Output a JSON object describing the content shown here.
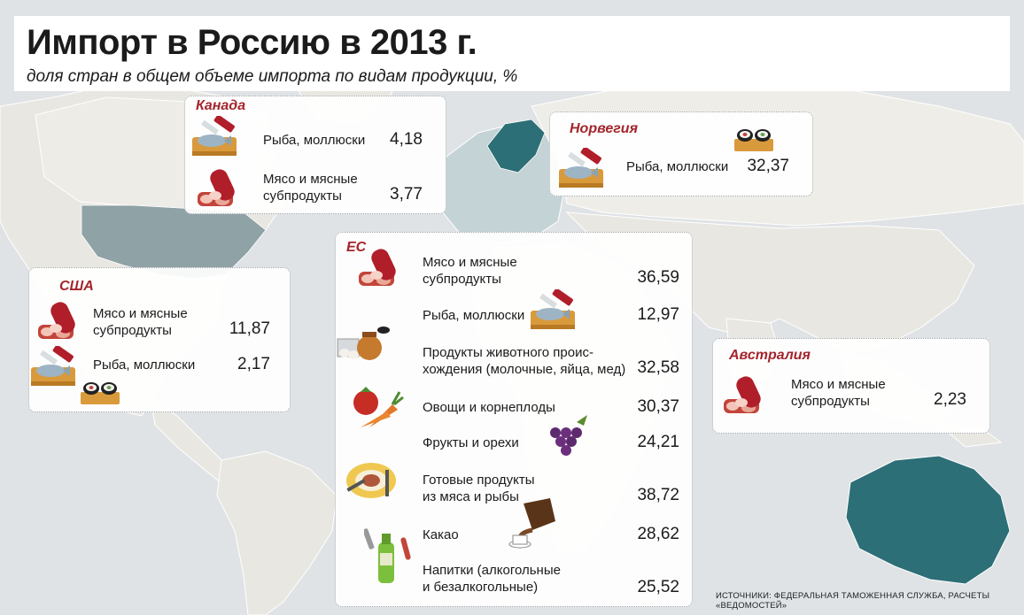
{
  "header": {
    "title": "Импорт в Россию в 2013 г.",
    "subtitle": "доля стран в общем объеме импорта по видам продукции, %"
  },
  "source": "ИСТОЧНИКИ: ФЕДЕРАЛЬНАЯ ТАМОЖЕННАЯ СЛУЖБА, РАСЧЕТЫ «ВЕДОМОСТЕЙ»",
  "colors": {
    "land": "#e6e4de",
    "sea": "#dfe3e6",
    "highlight_dark": "#2d6f77",
    "highlight_mid": "#8fb0b3",
    "highlight_light": "#b9ced0",
    "country_label": "#a3252c"
  },
  "chart_data": {
    "type": "table",
    "title": "Импорт в Россию в 2013 г.",
    "subtitle": "доля стран в общем объеме импорта по видам продукции, %",
    "unit": "%",
    "countries": [
      {
        "name": "Канада",
        "items": [
          {
            "product": "Рыба, моллюски",
            "value": "4,18",
            "icon": "fish-board-icon"
          },
          {
            "product": "Мясо и мясные субпродукты",
            "value": "3,77",
            "icon": "sausage-steak-icon"
          }
        ]
      },
      {
        "name": "Норвегия",
        "items": [
          {
            "product": "Рыба, моллюски",
            "value": "32,37",
            "icon": "fish-board-icon"
          }
        ]
      },
      {
        "name": "США",
        "items": [
          {
            "product": "Мясо и мясные субпродукты",
            "value": "11,87",
            "icon": "sausage-steak-icon"
          },
          {
            "product": "Рыба, моллюски",
            "value": "2,17",
            "icon": "fish-board-icon"
          }
        ]
      },
      {
        "name": "ЕС",
        "items": [
          {
            "product": "Мясо и мясные субпродукты",
            "value": "36,59",
            "icon": "sausage-steak-icon"
          },
          {
            "product": "Рыба, моллюски",
            "value": "12,97",
            "icon": "fish-board-icon"
          },
          {
            "product": "Продукты животного происхождения (молочные, яйца, мед)",
            "value": "32,58",
            "icon": "dairy-eggs-honey-icon"
          },
          {
            "product": "Овощи и корнеплоды",
            "value": "30,37",
            "icon": "tomato-carrot-icon"
          },
          {
            "product": "Фрукты и орехи",
            "value": "24,21",
            "icon": "grapes-icon"
          },
          {
            "product": "Готовые продукты из мяса и рыбы",
            "value": "38,72",
            "icon": "plate-steak-icon"
          },
          {
            "product": "Какао",
            "value": "28,62",
            "icon": "cocoa-pot-icon"
          },
          {
            "product": "Напитки (алкогольные и безалкогольные)",
            "value": "25,52",
            "icon": "bottle-icon"
          }
        ]
      },
      {
        "name": "Австралия",
        "items": [
          {
            "product": "Мясо и мясные субпродукты",
            "value": "2,23",
            "icon": "sausage-steak-icon"
          }
        ]
      }
    ]
  },
  "labels": {
    "canada": {
      "title": "Канада",
      "r1": [
        "Рыба, моллюски"
      ],
      "r2": [
        "Мясо и мясные",
        "субпродукты"
      ]
    },
    "norway": {
      "title": "Норвегия",
      "r1": [
        "Рыба, моллюски"
      ]
    },
    "usa": {
      "title": "США",
      "r1": [
        "Мясо и мясные",
        "субпродукты"
      ],
      "r2": [
        "Рыба, моллюски"
      ]
    },
    "eu": {
      "title": "ЕС",
      "r1": [
        "Мясо и мясные",
        "субпродукты"
      ],
      "r2": [
        "Рыба, моллюски"
      ],
      "r3": [
        "Продукты животного проис-",
        "хождения (молочные, яйца, мед)"
      ],
      "r4": [
        "Овощи и корнеплоды"
      ],
      "r5": [
        "Фрукты и орехи"
      ],
      "r6": [
        "Готовые продукты",
        "из мяса и рыбы"
      ],
      "r7": [
        "Какао"
      ],
      "r8": [
        "Напитки (алкогольные",
        "и безалкогольные)"
      ]
    },
    "australia": {
      "title": "Австралия",
      "r1": [
        "Мясо и мясные",
        "субпродукты"
      ]
    }
  }
}
